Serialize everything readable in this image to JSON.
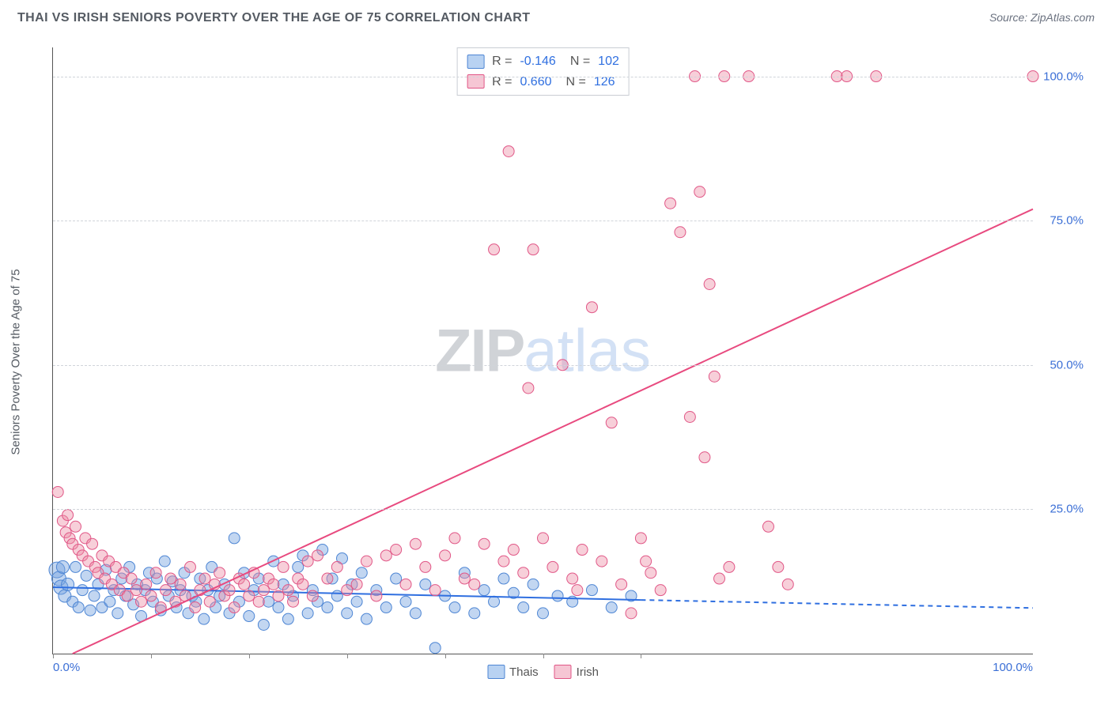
{
  "title": "THAI VS IRISH SENIORS POVERTY OVER THE AGE OF 75 CORRELATION CHART",
  "source": "Source: ZipAtlas.com",
  "ylabel": "Seniors Poverty Over the Age of 75",
  "watermark": {
    "part1": "ZIP",
    "part2": "atlas"
  },
  "chart": {
    "type": "scatter",
    "xlim": [
      0,
      100
    ],
    "ylim": [
      0,
      105
    ],
    "x_ticks_marks": [
      0,
      10,
      20,
      30,
      40,
      50,
      60
    ],
    "x_tick_labels": [
      {
        "v": 0,
        "label": "0.0%"
      },
      {
        "v": 100,
        "label": "100.0%"
      }
    ],
    "y_ticks": [
      {
        "v": 25,
        "label": "25.0%"
      },
      {
        "v": 50,
        "label": "50.0%"
      },
      {
        "v": 75,
        "label": "75.0%"
      },
      {
        "v": 100,
        "label": "100.0%"
      }
    ],
    "grid_color": "#d6dade",
    "background_color": "#ffffff",
    "series": [
      {
        "name": "Thais",
        "color_fill": "rgba(120,165,225,0.45)",
        "color_stroke": "#4e86d4",
        "swatch_fill": "#b8d2f2",
        "swatch_stroke": "#4e86d4",
        "marker_radius": 7,
        "R": "-0.146",
        "N": "102",
        "regression": {
          "x1": 0,
          "y1": 11.5,
          "x2": 60,
          "y2": 9.3,
          "x2_ext": 100,
          "y2_ext": 7.9,
          "stroke": "#2f6fe0",
          "width": 2
        },
        "points": [
          {
            "x": 0.4,
            "y": 14.5,
            "r": 10
          },
          {
            "x": 0.6,
            "y": 13,
            "r": 9
          },
          {
            "x": 0.8,
            "y": 11.5,
            "r": 9
          },
          {
            "x": 1,
            "y": 15,
            "r": 8
          },
          {
            "x": 1.2,
            "y": 10,
            "r": 8
          },
          {
            "x": 1.5,
            "y": 12,
            "r": 8
          },
          {
            "x": 2,
            "y": 9,
            "r": 7
          },
          {
            "x": 2.3,
            "y": 15,
            "r": 7
          },
          {
            "x": 2.6,
            "y": 8,
            "r": 7
          },
          {
            "x": 3,
            "y": 11,
            "r": 7
          },
          {
            "x": 3.4,
            "y": 13.5,
            "r": 7
          },
          {
            "x": 3.8,
            "y": 7.5,
            "r": 7
          },
          {
            "x": 4.2,
            "y": 10,
            "r": 7
          },
          {
            "x": 4.6,
            "y": 12,
            "r": 7
          },
          {
            "x": 5,
            "y": 8,
            "r": 7
          },
          {
            "x": 5.4,
            "y": 14.5,
            "r": 7
          },
          {
            "x": 5.8,
            "y": 9,
            "r": 7
          },
          {
            "x": 6.2,
            "y": 11,
            "r": 7
          },
          {
            "x": 6.6,
            "y": 7,
            "r": 7
          },
          {
            "x": 7,
            "y": 13,
            "r": 7
          },
          {
            "x": 7.4,
            "y": 10,
            "r": 7
          },
          {
            "x": 7.8,
            "y": 15,
            "r": 7
          },
          {
            "x": 8.2,
            "y": 8.5,
            "r": 7
          },
          {
            "x": 8.6,
            "y": 12,
            "r": 7
          },
          {
            "x": 9,
            "y": 6.5,
            "r": 7
          },
          {
            "x": 9.4,
            "y": 11,
            "r": 7
          },
          {
            "x": 9.8,
            "y": 14,
            "r": 7
          },
          {
            "x": 10.2,
            "y": 9,
            "r": 7
          },
          {
            "x": 10.6,
            "y": 13,
            "r": 7
          },
          {
            "x": 11,
            "y": 7.5,
            "r": 7
          },
          {
            "x": 11.4,
            "y": 16,
            "r": 7
          },
          {
            "x": 11.8,
            "y": 10,
            "r": 7
          },
          {
            "x": 12.2,
            "y": 12.5,
            "r": 7
          },
          {
            "x": 12.6,
            "y": 8,
            "r": 7
          },
          {
            "x": 13,
            "y": 11,
            "r": 7
          },
          {
            "x": 13.4,
            "y": 14,
            "r": 7
          },
          {
            "x": 13.8,
            "y": 7,
            "r": 7
          },
          {
            "x": 14.2,
            "y": 10,
            "r": 7
          },
          {
            "x": 14.6,
            "y": 9,
            "r": 7
          },
          {
            "x": 15,
            "y": 13,
            "r": 7
          },
          {
            "x": 15.4,
            "y": 6,
            "r": 7
          },
          {
            "x": 15.8,
            "y": 11,
            "r": 7
          },
          {
            "x": 16.2,
            "y": 15,
            "r": 7
          },
          {
            "x": 16.6,
            "y": 8,
            "r": 7
          },
          {
            "x": 17,
            "y": 10,
            "r": 7
          },
          {
            "x": 17.5,
            "y": 12,
            "r": 7
          },
          {
            "x": 18,
            "y": 7,
            "r": 7
          },
          {
            "x": 18.5,
            "y": 20,
            "r": 7
          },
          {
            "x": 19,
            "y": 9,
            "r": 7
          },
          {
            "x": 19.5,
            "y": 14,
            "r": 7
          },
          {
            "x": 20,
            "y": 6.5,
            "r": 7
          },
          {
            "x": 20.5,
            "y": 11,
            "r": 7
          },
          {
            "x": 21,
            "y": 13,
            "r": 7
          },
          {
            "x": 21.5,
            "y": 5,
            "r": 7
          },
          {
            "x": 22,
            "y": 9,
            "r": 7
          },
          {
            "x": 22.5,
            "y": 16,
            "r": 7
          },
          {
            "x": 23,
            "y": 8,
            "r": 7
          },
          {
            "x": 23.5,
            "y": 12,
            "r": 7
          },
          {
            "x": 24,
            "y": 6,
            "r": 7
          },
          {
            "x": 24.5,
            "y": 10,
            "r": 7
          },
          {
            "x": 25,
            "y": 15,
            "r": 7
          },
          {
            "x": 25.5,
            "y": 17,
            "r": 7
          },
          {
            "x": 26,
            "y": 7,
            "r": 7
          },
          {
            "x": 26.5,
            "y": 11,
            "r": 7
          },
          {
            "x": 27,
            "y": 9,
            "r": 7
          },
          {
            "x": 27.5,
            "y": 18,
            "r": 7
          },
          {
            "x": 28,
            "y": 8,
            "r": 7
          },
          {
            "x": 28.5,
            "y": 13,
            "r": 7
          },
          {
            "x": 29,
            "y": 10,
            "r": 7
          },
          {
            "x": 29.5,
            "y": 16.5,
            "r": 7
          },
          {
            "x": 30,
            "y": 7,
            "r": 7
          },
          {
            "x": 30.5,
            "y": 12,
            "r": 7
          },
          {
            "x": 31,
            "y": 9,
            "r": 7
          },
          {
            "x": 31.5,
            "y": 14,
            "r": 7
          },
          {
            "x": 32,
            "y": 6,
            "r": 7
          },
          {
            "x": 33,
            "y": 11,
            "r": 7
          },
          {
            "x": 34,
            "y": 8,
            "r": 7
          },
          {
            "x": 35,
            "y": 13,
            "r": 7
          },
          {
            "x": 36,
            "y": 9,
            "r": 7
          },
          {
            "x": 37,
            "y": 7,
            "r": 7
          },
          {
            "x": 38,
            "y": 12,
            "r": 7
          },
          {
            "x": 39,
            "y": 1,
            "r": 7
          },
          {
            "x": 40,
            "y": 10,
            "r": 7
          },
          {
            "x": 41,
            "y": 8,
            "r": 7
          },
          {
            "x": 42,
            "y": 14,
            "r": 7
          },
          {
            "x": 43,
            "y": 7,
            "r": 7
          },
          {
            "x": 44,
            "y": 11,
            "r": 7
          },
          {
            "x": 45,
            "y": 9,
            "r": 7
          },
          {
            "x": 46,
            "y": 13,
            "r": 7
          },
          {
            "x": 47,
            "y": 10.5,
            "r": 7
          },
          {
            "x": 48,
            "y": 8,
            "r": 7
          },
          {
            "x": 49,
            "y": 12,
            "r": 7
          },
          {
            "x": 50,
            "y": 7,
            "r": 7
          },
          {
            "x": 51.5,
            "y": 10,
            "r": 7
          },
          {
            "x": 53,
            "y": 9,
            "r": 7
          },
          {
            "x": 55,
            "y": 11,
            "r": 7
          },
          {
            "x": 57,
            "y": 8,
            "r": 7
          },
          {
            "x": 59,
            "y": 10,
            "r": 7
          }
        ]
      },
      {
        "name": "Irish",
        "color_fill": "rgba(235,140,165,0.42)",
        "color_stroke": "#e15787",
        "swatch_fill": "#f6c6d4",
        "swatch_stroke": "#e15787",
        "marker_radius": 7,
        "R": "0.660",
        "N": "126",
        "regression": {
          "x1": 2,
          "y1": 0,
          "x2": 100,
          "y2": 77,
          "stroke": "#e84a7f",
          "width": 2
        },
        "points": [
          {
            "x": 0.5,
            "y": 28
          },
          {
            "x": 1,
            "y": 23
          },
          {
            "x": 1.3,
            "y": 21
          },
          {
            "x": 1.5,
            "y": 24
          },
          {
            "x": 1.7,
            "y": 20
          },
          {
            "x": 2,
            "y": 19
          },
          {
            "x": 2.3,
            "y": 22
          },
          {
            "x": 2.6,
            "y": 18
          },
          {
            "x": 3,
            "y": 17
          },
          {
            "x": 3.3,
            "y": 20
          },
          {
            "x": 3.6,
            "y": 16
          },
          {
            "x": 4,
            "y": 19
          },
          {
            "x": 4.3,
            "y": 15
          },
          {
            "x": 4.6,
            "y": 14
          },
          {
            "x": 5,
            "y": 17
          },
          {
            "x": 5.3,
            "y": 13
          },
          {
            "x": 5.7,
            "y": 16
          },
          {
            "x": 6,
            "y": 12
          },
          {
            "x": 6.4,
            "y": 15
          },
          {
            "x": 6.8,
            "y": 11
          },
          {
            "x": 7.2,
            "y": 14
          },
          {
            "x": 7.6,
            "y": 10
          },
          {
            "x": 8,
            "y": 13
          },
          {
            "x": 8.5,
            "y": 11
          },
          {
            "x": 9,
            "y": 9
          },
          {
            "x": 9.5,
            "y": 12
          },
          {
            "x": 10,
            "y": 10
          },
          {
            "x": 10.5,
            "y": 14
          },
          {
            "x": 11,
            "y": 8
          },
          {
            "x": 11.5,
            "y": 11
          },
          {
            "x": 12,
            "y": 13
          },
          {
            "x": 12.5,
            "y": 9
          },
          {
            "x": 13,
            "y": 12
          },
          {
            "x": 13.5,
            "y": 10
          },
          {
            "x": 14,
            "y": 15
          },
          {
            "x": 14.5,
            "y": 8
          },
          {
            "x": 15,
            "y": 11
          },
          {
            "x": 15.5,
            "y": 13
          },
          {
            "x": 16,
            "y": 9
          },
          {
            "x": 16.5,
            "y": 12
          },
          {
            "x": 17,
            "y": 14
          },
          {
            "x": 17.5,
            "y": 10
          },
          {
            "x": 18,
            "y": 11
          },
          {
            "x": 18.5,
            "y": 8
          },
          {
            "x": 19,
            "y": 13
          },
          {
            "x": 19.5,
            "y": 12
          },
          {
            "x": 20,
            "y": 10
          },
          {
            "x": 20.5,
            "y": 14
          },
          {
            "x": 21,
            "y": 9
          },
          {
            "x": 21.5,
            "y": 11
          },
          {
            "x": 22,
            "y": 13
          },
          {
            "x": 22.5,
            "y": 12
          },
          {
            "x": 23,
            "y": 10
          },
          {
            "x": 23.5,
            "y": 15
          },
          {
            "x": 24,
            "y": 11
          },
          {
            "x": 24.5,
            "y": 9
          },
          {
            "x": 25,
            "y": 13
          },
          {
            "x": 25.5,
            "y": 12
          },
          {
            "x": 26,
            "y": 16
          },
          {
            "x": 26.5,
            "y": 10
          },
          {
            "x": 27,
            "y": 17
          },
          {
            "x": 28,
            "y": 13
          },
          {
            "x": 29,
            "y": 15
          },
          {
            "x": 30,
            "y": 11
          },
          {
            "x": 31,
            "y": 12
          },
          {
            "x": 32,
            "y": 16
          },
          {
            "x": 33,
            "y": 10
          },
          {
            "x": 34,
            "y": 17
          },
          {
            "x": 35,
            "y": 18
          },
          {
            "x": 36,
            "y": 12
          },
          {
            "x": 37,
            "y": 19
          },
          {
            "x": 38,
            "y": 15
          },
          {
            "x": 39,
            "y": 11
          },
          {
            "x": 40,
            "y": 17
          },
          {
            "x": 41,
            "y": 20
          },
          {
            "x": 42,
            "y": 13
          },
          {
            "x": 43,
            "y": 12
          },
          {
            "x": 44,
            "y": 19
          },
          {
            "x": 45,
            "y": 70
          },
          {
            "x": 46,
            "y": 16
          },
          {
            "x": 46.5,
            "y": 87
          },
          {
            "x": 47,
            "y": 18
          },
          {
            "x": 48,
            "y": 14
          },
          {
            "x": 48.5,
            "y": 46
          },
          {
            "x": 49,
            "y": 70
          },
          {
            "x": 50,
            "y": 20
          },
          {
            "x": 51,
            "y": 15
          },
          {
            "x": 52,
            "y": 50
          },
          {
            "x": 53,
            "y": 13
          },
          {
            "x": 53.5,
            "y": 11
          },
          {
            "x": 54,
            "y": 18
          },
          {
            "x": 55,
            "y": 60
          },
          {
            "x": 56,
            "y": 16
          },
          {
            "x": 57,
            "y": 40
          },
          {
            "x": 58,
            "y": 12
          },
          {
            "x": 59,
            "y": 7
          },
          {
            "x": 60,
            "y": 20
          },
          {
            "x": 60.5,
            "y": 16
          },
          {
            "x": 61,
            "y": 14
          },
          {
            "x": 62,
            "y": 11
          },
          {
            "x": 63,
            "y": 78
          },
          {
            "x": 64,
            "y": 73
          },
          {
            "x": 65,
            "y": 41
          },
          {
            "x": 65.5,
            "y": 100
          },
          {
            "x": 66,
            "y": 80
          },
          {
            "x": 66.5,
            "y": 34
          },
          {
            "x": 67,
            "y": 64
          },
          {
            "x": 67.5,
            "y": 48
          },
          {
            "x": 68,
            "y": 13
          },
          {
            "x": 68.5,
            "y": 100
          },
          {
            "x": 69,
            "y": 15
          },
          {
            "x": 71,
            "y": 100
          },
          {
            "x": 73,
            "y": 22
          },
          {
            "x": 74,
            "y": 15
          },
          {
            "x": 75,
            "y": 12
          },
          {
            "x": 80,
            "y": 100
          },
          {
            "x": 81,
            "y": 100
          },
          {
            "x": 84,
            "y": 100
          },
          {
            "x": 100,
            "y": 100
          }
        ]
      }
    ],
    "legend_bottom": [
      {
        "label": "Thais",
        "fill": "#b8d2f2",
        "stroke": "#4e86d4"
      },
      {
        "label": "Irish",
        "fill": "#f6c6d4",
        "stroke": "#e15787"
      }
    ]
  }
}
